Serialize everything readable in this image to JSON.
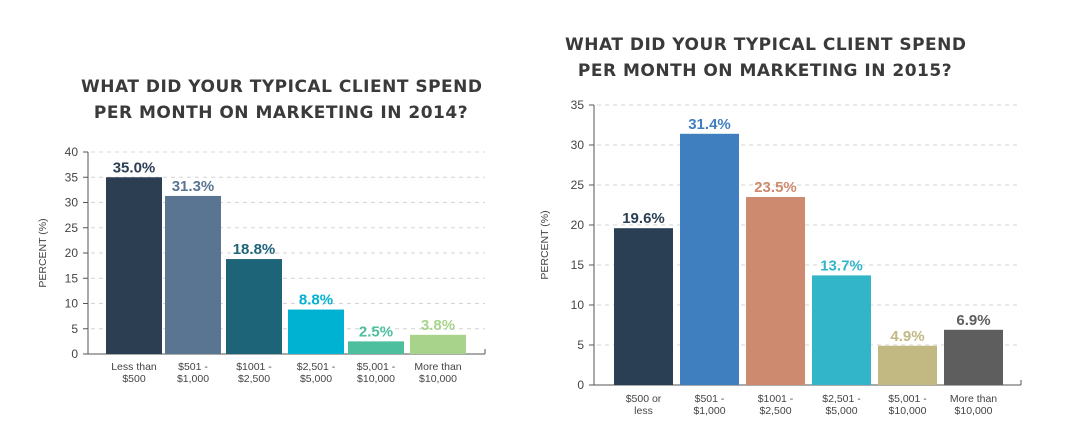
{
  "chart_data": [
    {
      "type": "bar",
      "title": [
        "WHAT DID YOUR TYPICAL CLIENT SPEND",
        "PER MONTH ON MARKETING IN 2014?"
      ],
      "ylabel": "PERCENT (%)",
      "xlabel": "",
      "ylim": [
        0,
        40
      ],
      "yticks": [
        0,
        5,
        10,
        15,
        20,
        25,
        30,
        35,
        40
      ],
      "grid": true,
      "categories": [
        [
          "Less than",
          "$500"
        ],
        [
          "$501 -",
          "$1,000"
        ],
        [
          "$1001 -",
          "$2,500"
        ],
        [
          "$2,501 -",
          "$5,000"
        ],
        [
          "$5,001 -",
          "$10,000"
        ],
        [
          "More than",
          "$10,000"
        ]
      ],
      "values": [
        35.0,
        31.3,
        18.8,
        8.8,
        2.5,
        3.8
      ],
      "data_labels": [
        "35.0%",
        "31.3%",
        "18.8%",
        "8.8%",
        "2.5%",
        "3.8%"
      ],
      "colors": [
        "#2b3e52",
        "#5a7591",
        "#1e6478",
        "#00b2d1",
        "#4dbf9e",
        "#a7d48a"
      ],
      "label_colors": [
        "#2b3e52",
        "#5a7591",
        "#1e6478",
        "#00b2d1",
        "#4dbf9e",
        "#a7d48a"
      ]
    },
    {
      "type": "bar",
      "title": [
        "WHAT DID YOUR TYPICAL CLIENT SPEND",
        "PER MONTH ON MARKETING IN 2015?"
      ],
      "ylabel": "PERCENT (%)",
      "xlabel": "",
      "ylim": [
        0,
        35
      ],
      "yticks": [
        0,
        5,
        10,
        15,
        20,
        25,
        30,
        35
      ],
      "grid": true,
      "categories": [
        [
          "$500 or",
          "less"
        ],
        [
          "$501 -",
          "$1,000"
        ],
        [
          "$1001 -",
          "$2,500"
        ],
        [
          "$2,501 -",
          "$5,000"
        ],
        [
          "$5,001 -",
          "$10,000"
        ],
        [
          "More than",
          "$10,000"
        ]
      ],
      "values": [
        19.6,
        31.4,
        23.5,
        13.7,
        4.9,
        6.9
      ],
      "data_labels": [
        "19.6%",
        "31.4%",
        "23.5%",
        "13.7%",
        "4.9%",
        "6.9%"
      ],
      "colors": [
        "#2a3f54",
        "#3f7fc0",
        "#cd8a6e",
        "#33b5c9",
        "#c2b882",
        "#5e5e5e"
      ],
      "label_colors": [
        "#2a3f54",
        "#3f7fc0",
        "#cd8a6e",
        "#33b5c9",
        "#c2b882",
        "#5e5e5e"
      ]
    }
  ]
}
